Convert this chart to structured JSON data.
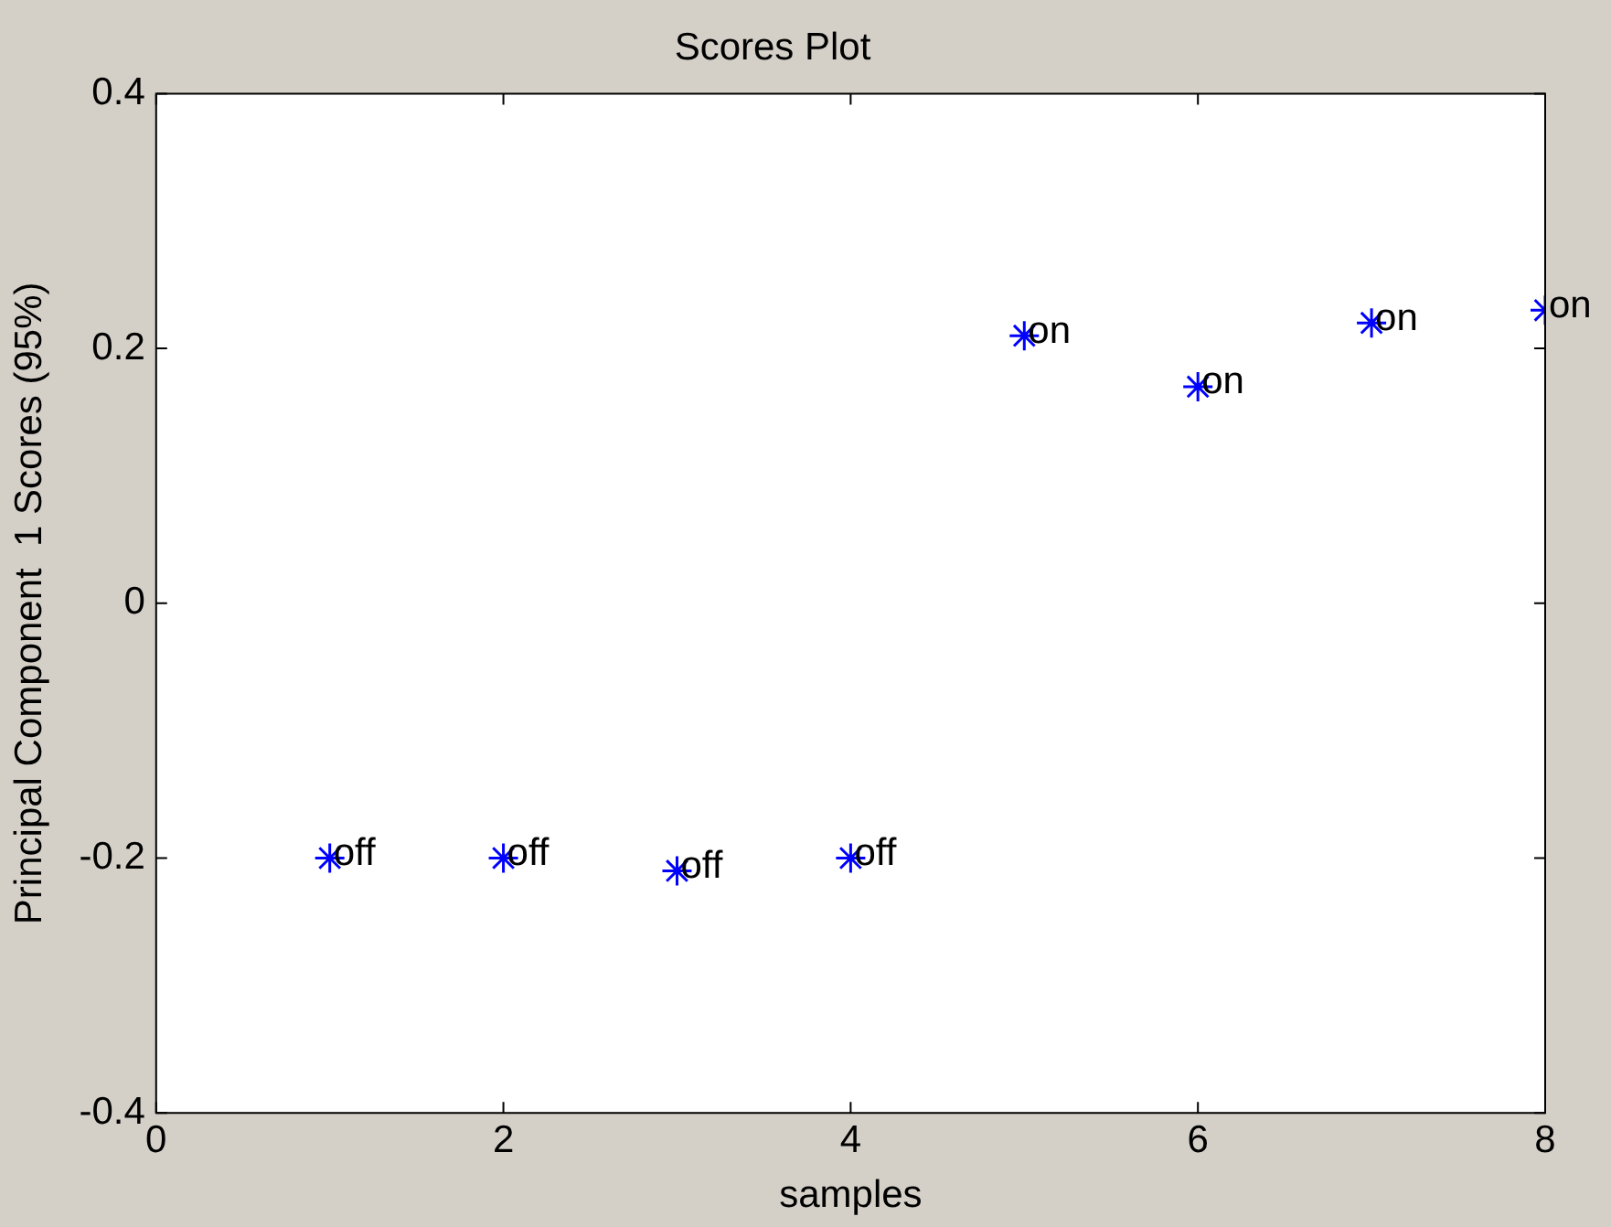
{
  "chart_data": {
    "type": "scatter",
    "title": "Scores Plot",
    "xlabel": "samples",
    "ylabel": "Principal Component  1 Scores (95%)",
    "x": [
      1,
      2,
      3,
      4,
      5,
      6,
      7,
      8
    ],
    "series": [
      {
        "color": "#0000ff",
        "values": [
          -0.2,
          -0.2,
          -0.21,
          -0.2,
          0.21,
          0.17,
          0.22,
          0.23
        ]
      }
    ],
    "xlim": [
      0,
      8
    ],
    "xticks": [
      0,
      2,
      4,
      6,
      8
    ],
    "ylim": [
      -0.4,
      0.4
    ],
    "yticks": [
      -0.4,
      -0.2,
      0,
      0.2,
      0.4
    ],
    "marker": "cross",
    "grid": false,
    "legend": false,
    "annotations": [
      {
        "text": "off",
        "x": 1,
        "y": -0.2
      },
      {
        "text": "off",
        "x": 2,
        "y": -0.2
      },
      {
        "text": "off",
        "x": 3,
        "y": -0.21
      },
      {
        "text": "off",
        "x": 4,
        "y": -0.2
      },
      {
        "text": "on",
        "x": 5,
        "y": 0.21
      },
      {
        "text": "on",
        "x": 6,
        "y": 0.17
      },
      {
        "text": "on",
        "x": 7,
        "y": 0.22
      },
      {
        "text": "on",
        "x": 8,
        "y": 0.23
      }
    ]
  }
}
